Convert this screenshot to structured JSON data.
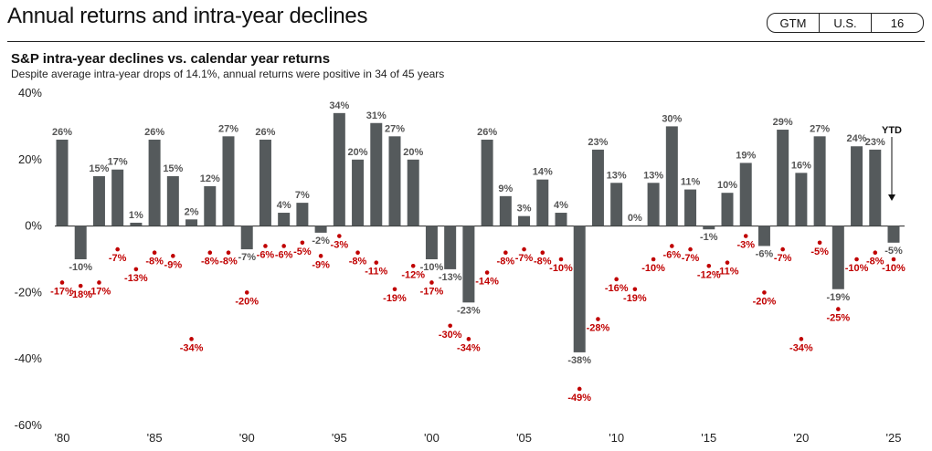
{
  "header": {
    "title": "Annual returns and intra-year declines",
    "badge": [
      "GTM",
      "U.S.",
      "16"
    ]
  },
  "chart_data": {
    "type": "bar",
    "title": "S&P intra-year declines vs. calendar year returns",
    "subtitle": "Despite average intra-year drops of 14.1%, annual returns were positive in 34 of 45 years",
    "ylim": [
      -60,
      40
    ],
    "yticks": [
      -60,
      -40,
      -20,
      0,
      20,
      40
    ],
    "ytick_labels": [
      "-60%",
      "-40%",
      "-20%",
      "0%",
      "20%",
      "40%"
    ],
    "xticks": [
      {
        "year": 1980,
        "label": "'80"
      },
      {
        "year": 1985,
        "label": "'85"
      },
      {
        "year": 1990,
        "label": "'90"
      },
      {
        "year": 1995,
        "label": "'95"
      },
      {
        "year": 2000,
        "label": "'00"
      },
      {
        "year": 2005,
        "label": "'05"
      },
      {
        "year": 2010,
        "label": "'10"
      },
      {
        "year": 2015,
        "label": "'15"
      },
      {
        "year": 2020,
        "label": "'20"
      },
      {
        "year": 2025,
        "label": "'25"
      }
    ],
    "years": [
      1980,
      1981,
      1982,
      1983,
      1984,
      1985,
      1986,
      1987,
      1988,
      1989,
      1990,
      1991,
      1992,
      1993,
      1994,
      1995,
      1996,
      1997,
      1998,
      1999,
      2000,
      2001,
      2002,
      2003,
      2004,
      2005,
      2006,
      2007,
      2008,
      2009,
      2010,
      2011,
      2012,
      2013,
      2014,
      2015,
      2016,
      2017,
      2018,
      2019,
      2020,
      2021,
      2022,
      2023,
      2024,
      2025
    ],
    "series": [
      {
        "name": "Calendar year return",
        "color": "#555a5c",
        "values": [
          26,
          -10,
          15,
          17,
          1,
          26,
          15,
          2,
          12,
          27,
          -7,
          26,
          4,
          7,
          -2,
          34,
          20,
          31,
          27,
          20,
          -10,
          -13,
          -23,
          26,
          9,
          3,
          14,
          4,
          -38,
          23,
          13,
          0,
          13,
          30,
          11,
          -1,
          10,
          19,
          -6,
          29,
          16,
          27,
          -19,
          24,
          23,
          -5
        ]
      },
      {
        "name": "Intra-year decline",
        "color": "#c00000",
        "values": [
          -17,
          -18,
          -17,
          -7,
          -13,
          -8,
          -9,
          -34,
          -8,
          -8,
          -20,
          -6,
          -6,
          -5,
          -9,
          -3,
          -8,
          -11,
          -19,
          -12,
          -17,
          -30,
          -34,
          -14,
          -8,
          -7,
          -8,
          -10,
          -49,
          -28,
          -16,
          -19,
          -10,
          -6,
          -7,
          -12,
          -11,
          -3,
          -20,
          -7,
          -34,
          -5,
          -25,
          -10,
          -8,
          -10
        ]
      }
    ],
    "return_labels": [
      "26%",
      "-10%",
      "15%",
      "17%",
      "1%",
      "26%",
      "15%",
      "2%",
      "12%",
      "27%",
      "-7%",
      "26%",
      "4%",
      "7%",
      "-2%",
      "34%",
      "20%",
      "31%",
      "27%",
      "20%",
      "-10%",
      "-13%",
      "-23%",
      "26%",
      "9%",
      "3%",
      "14%",
      "4%",
      "-38%",
      "23%",
      "13%",
      "0%",
      "13%",
      "30%",
      "11%",
      "-1%",
      "10%",
      "19%",
      "-6%",
      "29%",
      "16%",
      "27%",
      "-19%",
      "24%",
      "23%",
      "-5%"
    ],
    "decline_labels": [
      "-17%",
      "-18%",
      "-17%",
      "-7%",
      "-13%",
      "-8%",
      "-9%",
      "-34%",
      "-8%",
      "-8%",
      "-20%",
      "-6%",
      "-6%",
      "-5%",
      "-9%",
      "-3%",
      "-8%",
      "-11%",
      "-19%",
      "-12%",
      "-17%",
      "-30%",
      "-34%",
      "-14%",
      "-8%",
      "-7%",
      "-8%",
      "-10%",
      "-49%",
      "-28%",
      "-16%",
      "-19%",
      "-10%",
      "-6%",
      "-7%",
      "-12%",
      "-11%",
      "-3%",
      "-20%",
      "-7%",
      "-34%",
      "-5%",
      "-25%",
      "-10%",
      "-8%",
      "-10%"
    ],
    "ytd_label": "YTD"
  }
}
